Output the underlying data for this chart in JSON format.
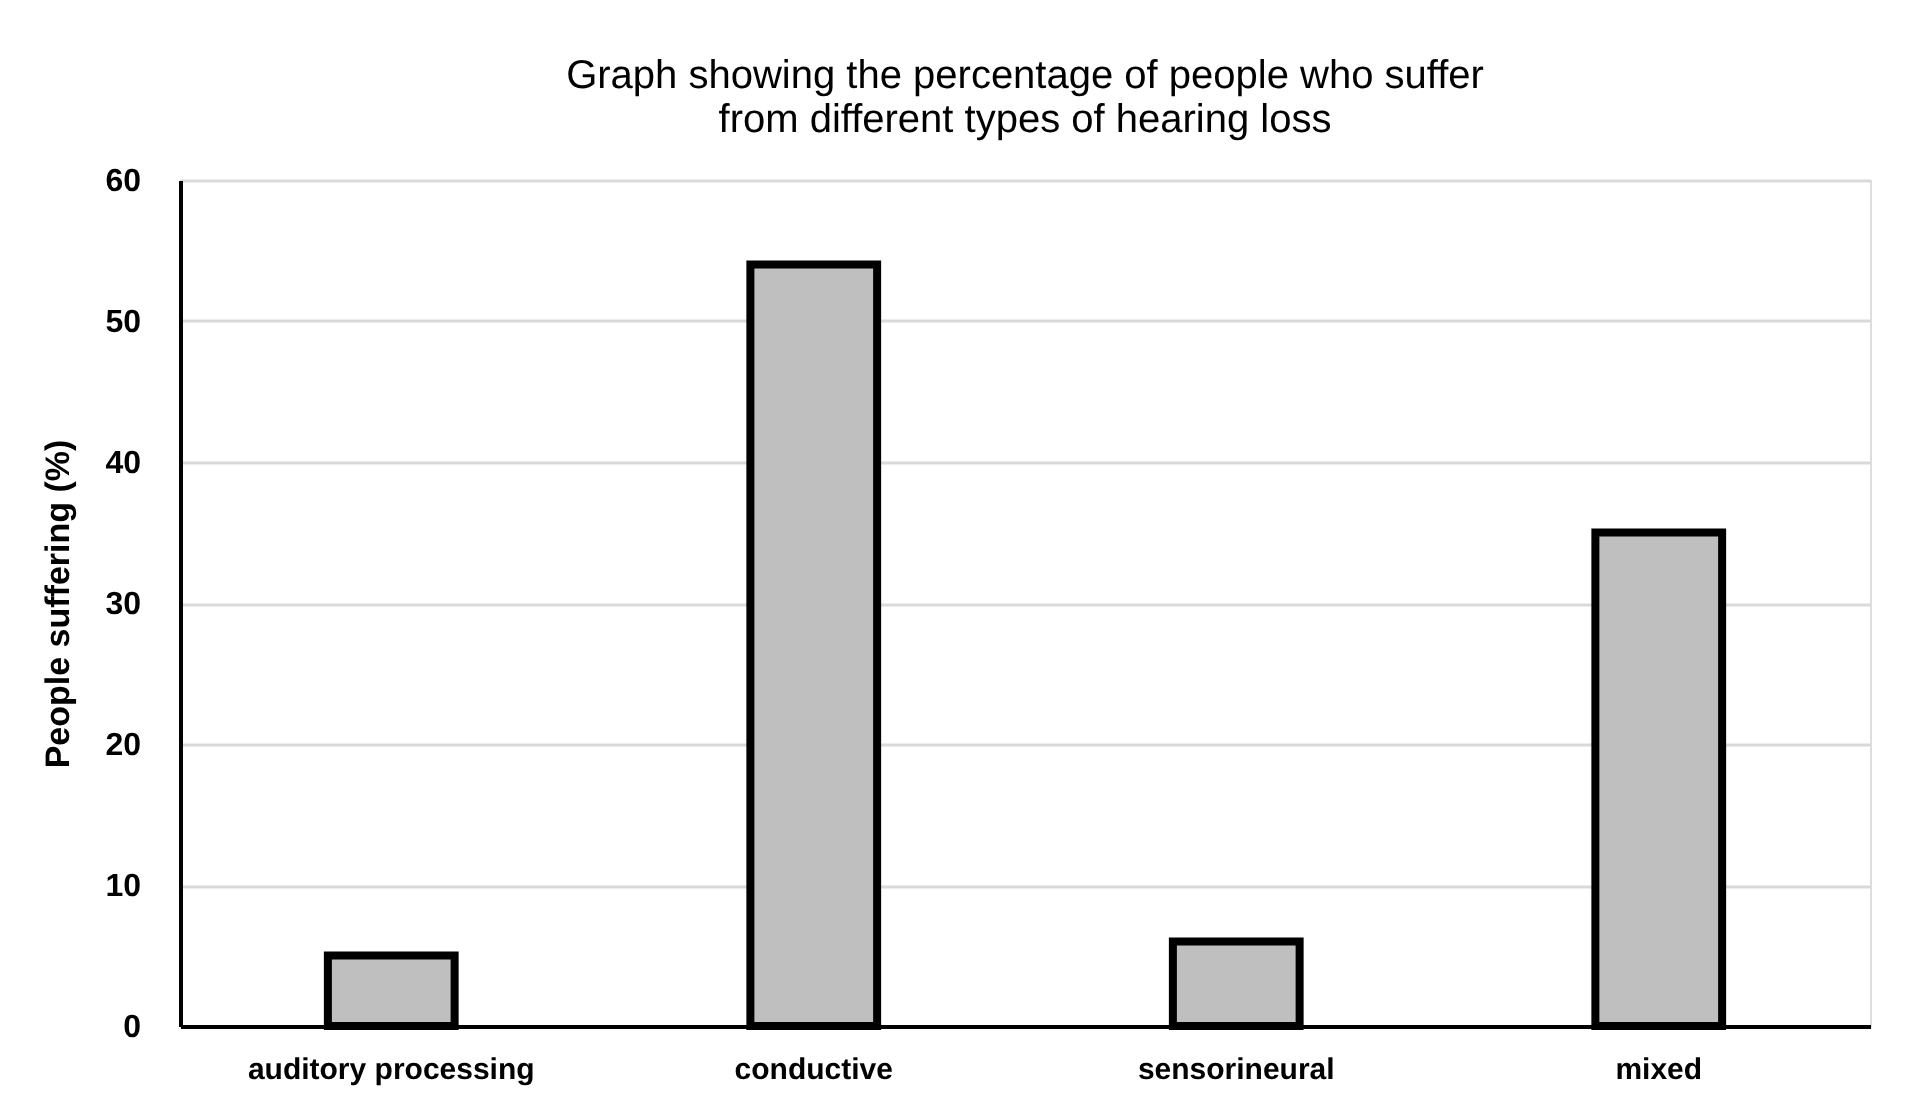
{
  "chart_data": {
    "type": "bar",
    "title": "Graph showing the percentage of people who suffer from different types of hearing loss",
    "ylabel": "People suffering (%)",
    "categories": [
      "auditory processing",
      "conductive",
      "sensorineural",
      "mixed"
    ],
    "values": [
      5,
      54,
      6,
      35
    ],
    "color": "#bfbfbf",
    "ylim": [
      0,
      60
    ],
    "yticks": [
      0,
      10,
      20,
      30,
      40,
      50,
      60
    ],
    "grid": "y"
  }
}
